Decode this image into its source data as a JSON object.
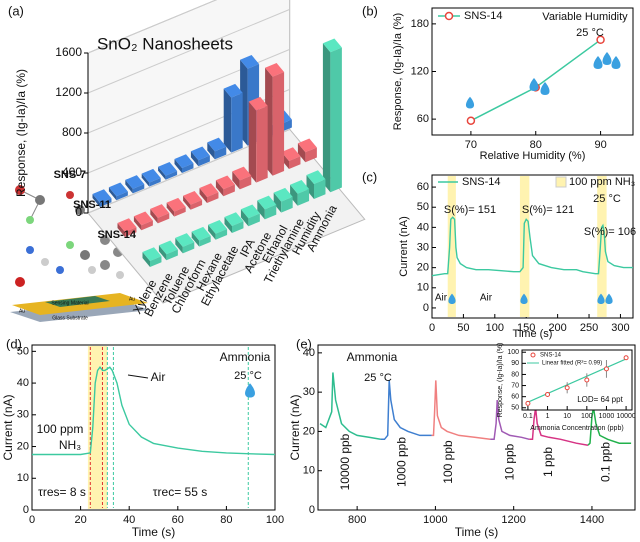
{
  "chart_data": [
    {
      "type": "bar3d",
      "panel_label": "(a)",
      "title": "SnO₂ Nanosheets",
      "zlabel": "Response, (Ig-Ia)/Ia (%)",
      "categories": [
        "Xylene",
        "Benzene",
        "Toluene",
        "Chloroform",
        "Hexane",
        "Ethylacetate",
        "IPA",
        "Acetone",
        "Ethanol",
        "Triethylamine",
        "Humidity",
        "Ammonia"
      ],
      "series": [
        {
          "name": "SNS-7",
          "color": "#3a78c9",
          "values": [
            40,
            40,
            45,
            40,
            40,
            50,
            60,
            80,
            550,
            770,
            60,
            80
          ]
        },
        {
          "name": "SNS-11",
          "color": "#d9636b",
          "values": [
            50,
            50,
            55,
            50,
            50,
            60,
            70,
            90,
            720,
            990,
            80,
            100
          ]
        },
        {
          "name": "SNS-14",
          "color": "#4fc9a8",
          "values": [
            60,
            60,
            65,
            60,
            60,
            70,
            80,
            100,
            110,
            120,
            150,
            1400
          ]
        }
      ],
      "zlim": [
        0,
        1600
      ],
      "zticks": [
        0,
        400,
        800,
        1200,
        1600
      ],
      "device_labels": [
        "Sensing Material",
        "Au",
        "Au",
        "Glass Substrate"
      ]
    },
    {
      "type": "line",
      "panel_label": "(b)",
      "xlabel": "Relative Humidity (%)",
      "ylabel": "Response, (Ig-Ia)/Ia (%)",
      "x": [
        70,
        80,
        90
      ],
      "series": [
        {
          "name": "SNS-14",
          "color": "#e8453c",
          "line_color": "#3cc9a0",
          "values": [
            58,
            100,
            160
          ]
        }
      ],
      "xlim": [
        64,
        95
      ],
      "ylim": [
        40,
        200
      ],
      "xticks": [
        70,
        80,
        90
      ],
      "yticks": [
        60,
        120,
        180
      ],
      "annotations": [
        "Variable Humidity",
        "25 °C"
      ]
    },
    {
      "type": "line",
      "panel_label": "(c)",
      "xlabel": "Time (s)",
      "ylabel": "Current (nA)",
      "x": [
        0,
        20,
        25,
        28,
        30,
        33,
        36,
        38,
        40,
        45,
        55,
        70,
        90,
        110,
        130,
        140,
        145,
        147,
        150,
        153,
        156,
        160,
        170,
        190,
        210,
        230,
        240,
        250,
        260,
        265,
        268,
        270,
        272,
        274,
        276,
        280,
        290,
        305,
        320
      ],
      "series": [
        {
          "name": "SNS-14",
          "color": "#3cc9a0",
          "values": [
            16,
            17,
            17,
            30,
            44,
            45,
            44,
            30,
            25,
            22,
            20,
            19,
            19,
            18.5,
            18,
            18,
            20,
            42,
            44,
            43,
            35,
            26,
            22,
            20,
            19,
            19,
            18,
            17.5,
            17,
            17,
            30,
            40,
            41,
            38,
            28,
            23,
            21,
            20,
            20
          ]
        }
      ],
      "shaded": {
        "name": "100 ppm NH₃",
        "color": "#fff3b0",
        "intervals": [
          [
            25,
            38
          ],
          [
            140,
            155
          ],
          [
            263,
            278
          ]
        ]
      },
      "xlim": [
        0,
        320
      ],
      "ylim": [
        -5,
        66
      ],
      "xticks": [
        0,
        50,
        100,
        150,
        200,
        250,
        300
      ],
      "yticks": [
        0,
        10,
        20,
        30,
        40,
        50,
        60
      ],
      "annotations": [
        "S(%)= 151",
        "S(%)= 121",
        "S(%)= 106",
        "25 °C",
        "Air",
        "Air"
      ]
    },
    {
      "type": "line",
      "panel_label": "(d)",
      "xlabel": "Time (s)",
      "ylabel": "Current (nA)",
      "x": [
        0,
        10,
        20,
        24,
        25,
        26,
        27,
        28,
        29,
        30,
        32,
        33,
        35,
        37,
        40,
        45,
        50,
        60,
        70,
        80,
        90,
        100
      ],
      "series": [
        {
          "color": "#3cc9a0",
          "values": [
            17.5,
            17.5,
            17.5,
            18,
            26,
            40,
            44,
            45,
            44,
            44,
            45,
            44,
            40,
            33,
            27,
            23,
            21,
            19.5,
            18.5,
            18,
            17.7,
            17.5
          ]
        }
      ],
      "shaded": {
        "color": "#fff3b0",
        "intervals": [
          [
            23,
            31
          ]
        ]
      },
      "reference_lines": [
        {
          "x": 24,
          "color": "#e03030"
        },
        {
          "x": 29,
          "color": "#e03030"
        },
        {
          "x": 31,
          "color": "#3cc9a0"
        },
        {
          "x": 33.5,
          "color": "#3cc9a0"
        },
        {
          "x": 89,
          "color": "#3cc9a0"
        }
      ],
      "xlim": [
        0,
        100
      ],
      "ylim": [
        0,
        52
      ],
      "xticks": [
        0,
        20,
        40,
        60,
        80,
        100
      ],
      "yticks": [
        0,
        10,
        20,
        30,
        40,
        50
      ],
      "annotations": [
        "Ammonia",
        "25 °C",
        "Air",
        "100 ppm",
        "NH₃",
        "τres= 8 s",
        "τrec= 55 s"
      ]
    },
    {
      "type": "segments",
      "panel_label": "(e)",
      "xlabel": "Time (s)",
      "ylabel": "Current (nA)",
      "segments": [
        {
          "label": "10000 ppb",
          "color": "#2ebd8f",
          "x": [
            705,
            720,
            735,
            738,
            745,
            760,
            780,
            800,
            830,
            860
          ],
          "y": [
            22,
            21,
            25,
            35,
            28,
            22,
            20,
            19,
            18.5,
            18
          ]
        },
        {
          "label": "1000 ppb",
          "color": "#3f7fd0",
          "x": [
            860,
            870,
            878,
            882,
            886,
            895,
            910,
            930,
            960,
            990
          ],
          "y": [
            18,
            18,
            19,
            33,
            28,
            23,
            21,
            20,
            19,
            19
          ]
        },
        {
          "label": "100 ppb",
          "color": "#f08080",
          "x": [
            990,
            995,
            998,
            1001,
            1005,
            1015,
            1030,
            1060,
            1100,
            1140
          ],
          "y": [
            19,
            19,
            25,
            33,
            24,
            21,
            20,
            19,
            18.5,
            18
          ]
        },
        {
          "label": "10 ppb",
          "color": "#a05ab4",
          "x": [
            1140,
            1150,
            1155,
            1158,
            1162,
            1170,
            1190,
            1220,
            1240
          ],
          "y": [
            18,
            18,
            22,
            28,
            23,
            20,
            19,
            18.5,
            18
          ]
        },
        {
          "label": "1 ppb",
          "color": "#d63384",
          "x": [
            1240,
            1248,
            1252,
            1256,
            1260,
            1270,
            1290,
            1320,
            1360,
            1390
          ],
          "y": [
            18,
            18,
            23,
            26,
            22,
            19,
            18.5,
            18,
            17,
            16.5
          ]
        },
        {
          "label": "0.1 ppb",
          "color": "#22b14c",
          "x": [
            1390,
            1395,
            1400,
            1404,
            1410,
            1420,
            1440,
            1470,
            1500
          ],
          "y": [
            16.5,
            17,
            24,
            26,
            22,
            19,
            18,
            17,
            17
          ]
        }
      ],
      "xlim": [
        700,
        1510
      ],
      "ylim": [
        0,
        42
      ],
      "xticks": [
        800,
        1000,
        1200,
        1400
      ],
      "yticks": [
        0,
        10,
        20,
        30,
        40
      ],
      "annotations": [
        "Ammonia",
        "25 °C"
      ]
    },
    {
      "type": "scatter",
      "xlabel": "Ammonia Concentration (ppb)",
      "ylabel": "Response, (Ig-Ia)/Ia (%)",
      "xlog": true,
      "x": [
        0.1,
        1,
        10,
        100,
        1000,
        10000
      ],
      "series": [
        {
          "name": "SNS-14",
          "color": "#e8453c",
          "values": [
            54,
            62,
            68,
            75,
            85,
            95
          ],
          "errors": [
            1,
            2,
            5,
            6,
            8,
            2
          ]
        }
      ],
      "fit": {
        "name": "Linear fitted (R²= 0.99)",
        "color": "#3cc9a0",
        "x": [
          0.1,
          10000
        ],
        "y": [
          55,
          94
        ]
      },
      "xlim": [
        0.05,
        20000
      ],
      "ylim": [
        48,
        102
      ],
      "xticks": [
        0.1,
        1,
        10,
        100,
        1000,
        10000
      ],
      "yticks": [
        50,
        60,
        70,
        80,
        90,
        100
      ],
      "annotations": [
        "LOD= 64 ppt"
      ]
    }
  ]
}
